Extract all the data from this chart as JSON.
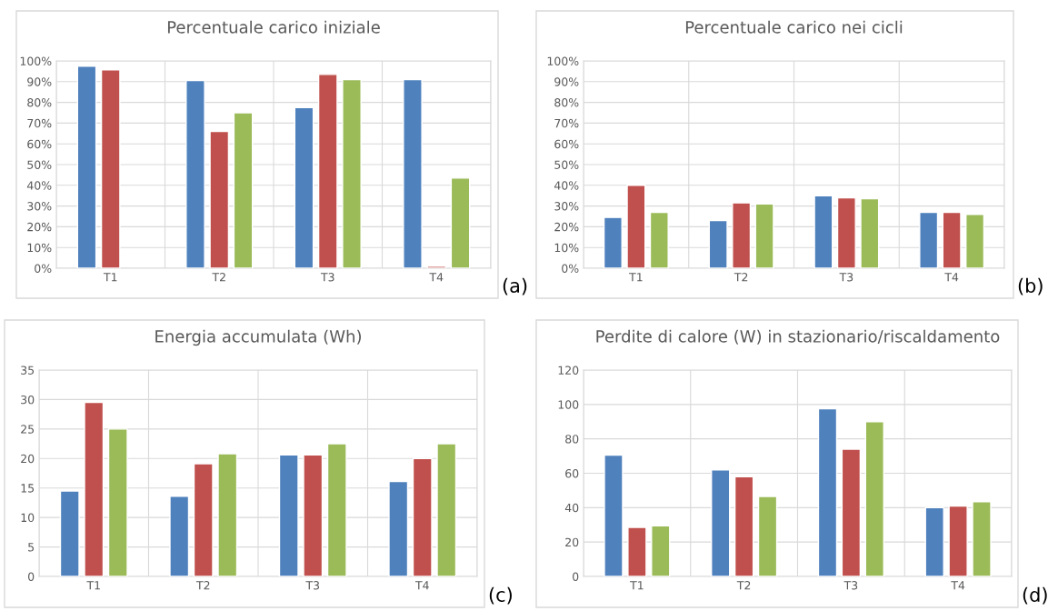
{
  "chart_data": [
    {
      "type": "bar",
      "title": "Percentuale carico iniziale",
      "categories": [
        "T1",
        "T2",
        "T3",
        "T4"
      ],
      "series": [
        {
          "color": "#4f81bd",
          "values": [
            97.5,
            90.5,
            77.5,
            91
          ]
        },
        {
          "color": "#c0504d",
          "values": [
            95.7,
            66,
            93.5,
            1
          ]
        },
        {
          "color": "#9bbb59",
          "values": [
            null,
            75,
            91,
            43.5
          ]
        }
      ],
      "ylim": [
        0,
        100
      ],
      "yticks": [
        {
          "value": 0,
          "label": "0%"
        },
        {
          "value": 10,
          "label": "10%"
        },
        {
          "value": 20,
          "label": "20%"
        },
        {
          "value": 30,
          "label": "30%"
        },
        {
          "value": 40,
          "label": "40%"
        },
        {
          "value": 50,
          "label": "50%"
        },
        {
          "value": 60,
          "label": "60%"
        },
        {
          "value": 70,
          "label": "70%"
        },
        {
          "value": 80,
          "label": "80%"
        },
        {
          "value": 90,
          "label": "90%"
        },
        {
          "value": 100,
          "label": "100%"
        }
      ],
      "grid": true,
      "annotations": [
        "(a)"
      ]
    },
    {
      "type": "bar",
      "title": "Percentuale carico nei cicli",
      "categories": [
        "T1",
        "T2",
        "T3",
        "T4"
      ],
      "series": [
        {
          "color": "#4f81bd",
          "values": [
            24.5,
            23,
            35,
            27
          ]
        },
        {
          "color": "#c0504d",
          "values": [
            40,
            31.5,
            34,
            27
          ]
        },
        {
          "color": "#9bbb59",
          "values": [
            27,
            31,
            33.5,
            26
          ]
        }
      ],
      "ylim": [
        0,
        100
      ],
      "yticks": [
        {
          "value": 0,
          "label": "0%"
        },
        {
          "value": 10,
          "label": "10%"
        },
        {
          "value": 20,
          "label": "20%"
        },
        {
          "value": 30,
          "label": "30%"
        },
        {
          "value": 40,
          "label": "40%"
        },
        {
          "value": 50,
          "label": "50%"
        },
        {
          "value": 60,
          "label": "60%"
        },
        {
          "value": 70,
          "label": "70%"
        },
        {
          "value": 80,
          "label": "80%"
        },
        {
          "value": 90,
          "label": "90%"
        },
        {
          "value": 100,
          "label": "100%"
        }
      ],
      "grid": true,
      "annotations": [
        "(b)"
      ]
    },
    {
      "type": "bar",
      "title": "Energia accumulata (Wh)",
      "categories": [
        "T1",
        "T2",
        "T3",
        "T4"
      ],
      "series": [
        {
          "color": "#4f81bd",
          "values": [
            14.5,
            13.6,
            20.6,
            16.1
          ]
        },
        {
          "color": "#c0504d",
          "values": [
            29.5,
            19.1,
            20.6,
            20
          ]
        },
        {
          "color": "#9bbb59",
          "values": [
            25,
            20.8,
            22.5,
            22.5
          ]
        }
      ],
      "ylim": [
        0,
        35
      ],
      "yticks": [
        0,
        5,
        10,
        15,
        20,
        25,
        30,
        35
      ],
      "grid": true,
      "annotations": [
        "(c)"
      ]
    },
    {
      "type": "bar",
      "title": "Perdite di calore (W) in stazionario/riscaldamento",
      "categories": [
        "T1",
        "T2",
        "T3",
        "T4"
      ],
      "series": [
        {
          "color": "#4f81bd",
          "values": [
            70.5,
            62,
            97.5,
            40
          ]
        },
        {
          "color": "#c0504d",
          "values": [
            28.5,
            58,
            74,
            41
          ]
        },
        {
          "color": "#9bbb59",
          "values": [
            29.5,
            46.5,
            90,
            43.5
          ]
        }
      ],
      "ylim": [
        0,
        120
      ],
      "yticks": [
        0,
        20,
        40,
        60,
        80,
        100,
        120
      ],
      "grid": true,
      "annotations": [
        "(d)"
      ]
    }
  ]
}
